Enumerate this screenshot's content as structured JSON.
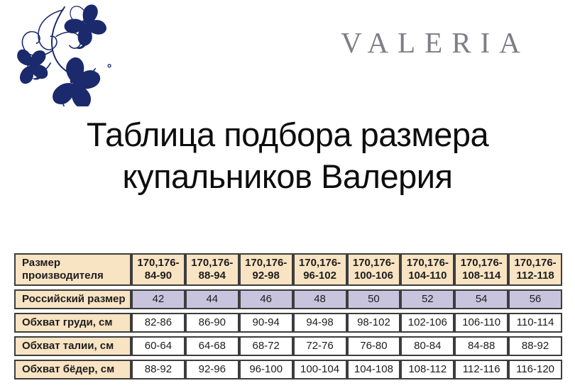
{
  "brand": {
    "logo": "floral-ornament",
    "logo_color": "#1b2a6c",
    "wordmark": "VALERIA",
    "wordmark_color": "#7e7e85"
  },
  "title": {
    "line1": "Таблица подбора размера",
    "line2": "купальников Валерия"
  },
  "colors": {
    "cream": "#f8e3c2",
    "lavender": "#c8c4de",
    "white": "#ffffff",
    "border": "#3d3d3d",
    "text": "#1d1d1f"
  },
  "size_table": {
    "rows": [
      {
        "label": "Размер\nпроизводителя",
        "values": [
          "170,176-\n84-90",
          "170,176-\n88-94",
          "170,176-\n92-98",
          "170,176-\n96-102",
          "170,176-\n100-106",
          "170,176-\n104-110",
          "170,176-\n108-114",
          "170,176-\n112-118"
        ],
        "label_bg": "#f8e3c2",
        "value_bg": "#f8e3c2",
        "bold": true,
        "tall": true
      },
      {
        "label": "Российский размер",
        "values": [
          "42",
          "44",
          "46",
          "48",
          "50",
          "52",
          "54",
          "56"
        ],
        "label_bg": "#f8e3c2",
        "value_bg": "#c8c4de",
        "bold": false,
        "tall": false
      },
      {
        "label": "Обхват груди, см",
        "values": [
          "82-86",
          "86-90",
          "90-94",
          "94-98",
          "98-102",
          "102-106",
          "106-110",
          "110-114"
        ],
        "label_bg": "#f8e3c2",
        "value_bg": "#ffffff",
        "bold": false,
        "tall": false
      },
      {
        "label": "Обхват талии, см",
        "values": [
          "60-64",
          "64-68",
          "68-72",
          "72-76",
          "76-80",
          "80-84",
          "84-88",
          "88-92"
        ],
        "label_bg": "#f8e3c2",
        "value_bg": "#ffffff",
        "bold": false,
        "tall": false
      },
      {
        "label": "Обхват бёдер, см",
        "values": [
          "88-92",
          "92-96",
          "96-100",
          "100-104",
          "104-108",
          "108-112",
          "112-116",
          "116-120"
        ],
        "label_bg": "#f8e3c2",
        "value_bg": "#ffffff",
        "bold": false,
        "tall": false
      }
    ]
  },
  "chart_data": {
    "type": "table",
    "title": "Таблица подбора размера купальников Валерия",
    "row_headers": [
      "Размер производителя",
      "Российский размер",
      "Обхват груди, см",
      "Обхват талии, см",
      "Обхват бёдер, см"
    ],
    "rows": [
      [
        "170,176-84-90",
        "170,176-88-94",
        "170,176-92-98",
        "170,176-96-102",
        "170,176-100-106",
        "170,176-104-110",
        "170,176-108-114",
        "170,176-112-118"
      ],
      [
        "42",
        "44",
        "46",
        "48",
        "50",
        "52",
        "54",
        "56"
      ],
      [
        "82-86",
        "86-90",
        "90-94",
        "94-98",
        "98-102",
        "102-106",
        "106-110",
        "110-114"
      ],
      [
        "60-64",
        "64-68",
        "68-72",
        "72-76",
        "76-80",
        "80-84",
        "84-88",
        "88-92"
      ],
      [
        "88-92",
        "92-96",
        "96-100",
        "100-104",
        "104-108",
        "108-112",
        "112-116",
        "116-120"
      ]
    ]
  }
}
